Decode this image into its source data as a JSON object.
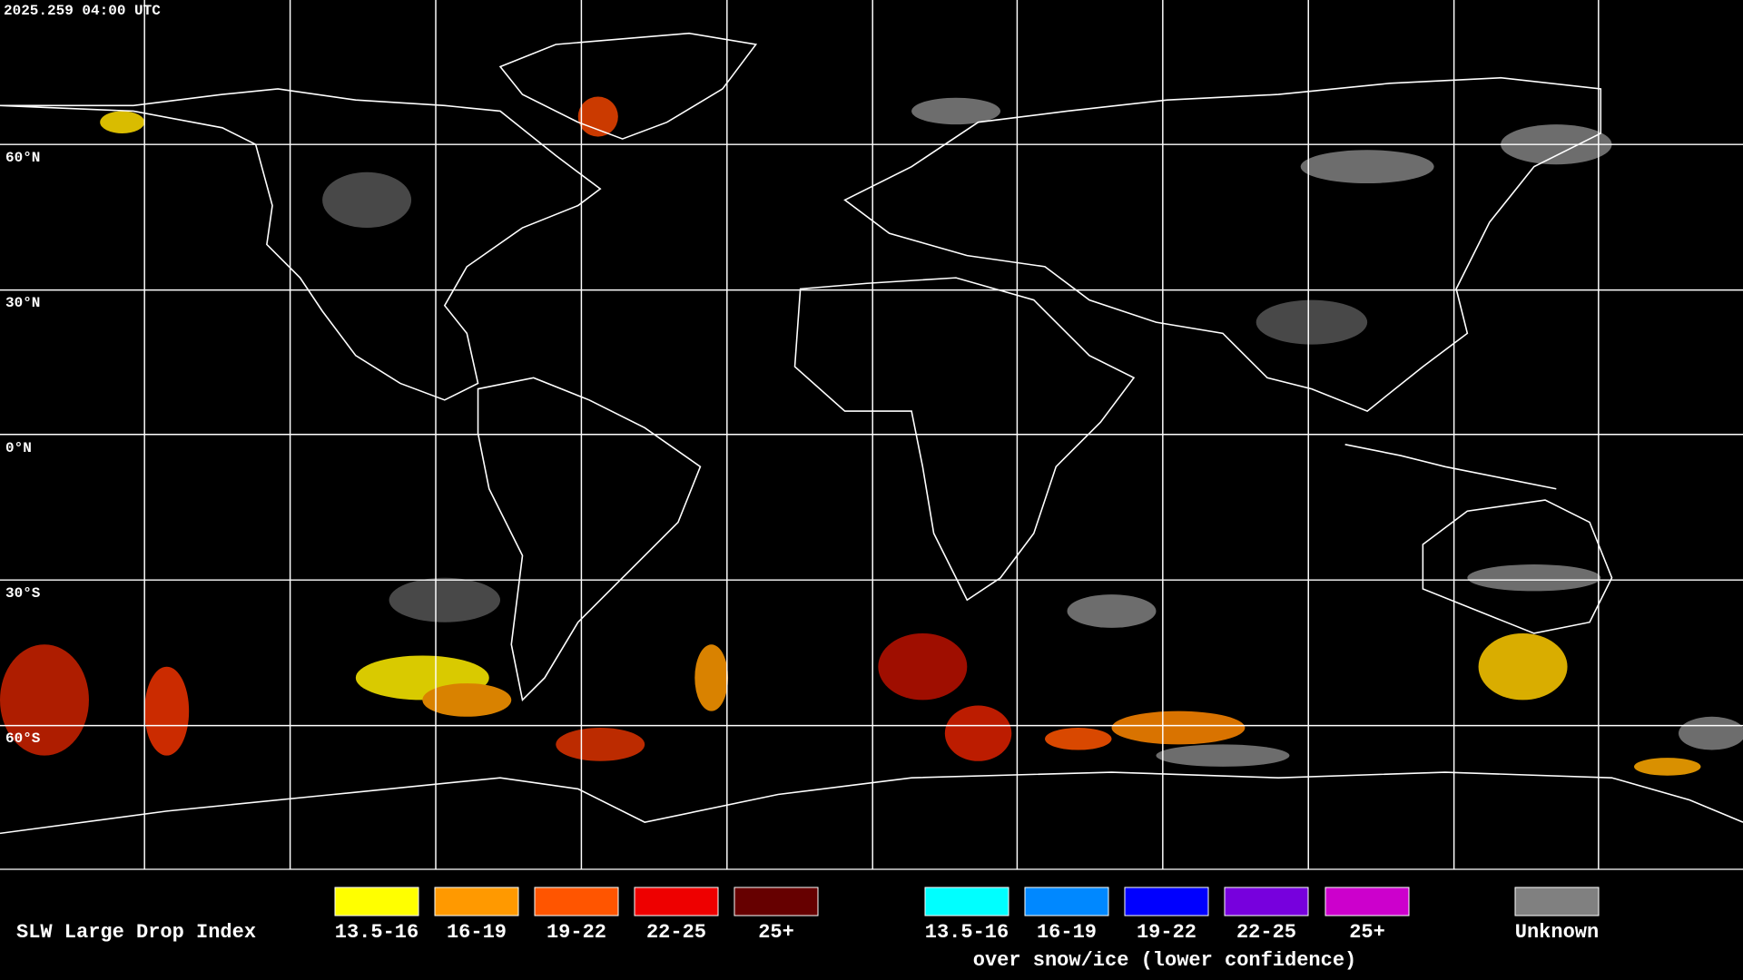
{
  "timestamp": "2025.259 04:00 UTC",
  "latitude_labels": [
    "60°N",
    "30°N",
    "0°N",
    "30°S",
    "60°S"
  ],
  "legend": {
    "title": "SLW Large Drop Index",
    "items": [
      {
        "label": "13.5-16",
        "color": "#ffff00"
      },
      {
        "label": "16-19",
        "color": "#ff9900"
      },
      {
        "label": "19-22",
        "color": "#ff5500"
      },
      {
        "label": "22-25",
        "color": "#ee0000"
      },
      {
        "label": "25+",
        "color": "#660000"
      }
    ],
    "snow_items": [
      {
        "label": "13.5-16",
        "color": "#00ffff"
      },
      {
        "label": "16-19",
        "color": "#0088ff"
      },
      {
        "label": "19-22",
        "color": "#0000ff"
      },
      {
        "label": "22-25",
        "color": "#7700dd"
      },
      {
        "label": "25+",
        "color": "#cc00cc"
      }
    ],
    "snow_caption": "over snow/ice (lower confidence)",
    "unknown": {
      "label": "Unknown",
      "color": "#808080"
    }
  }
}
